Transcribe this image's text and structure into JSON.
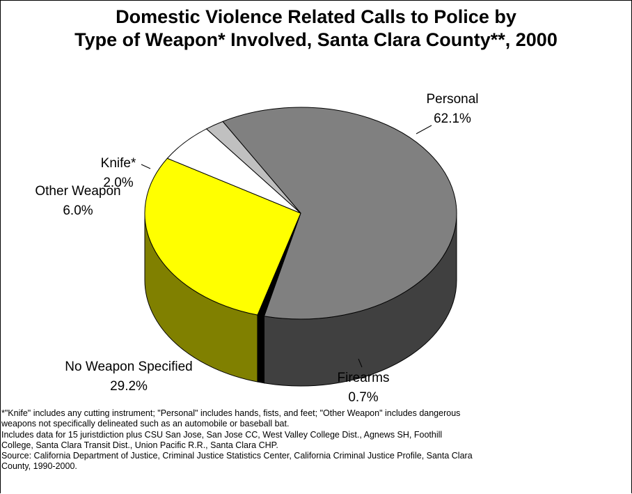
{
  "chart_data": {
    "type": "pie",
    "title_lines": [
      "Domestic Violence Related Calls to Police by",
      "Type of Weapon* Involved, Santa Clara County**, 2000"
    ],
    "slices": [
      {
        "name": "Personal",
        "value": 62.1,
        "label": "62.1%",
        "color": "#808080",
        "side_color": "#404040"
      },
      {
        "name": "Firearms",
        "value": 0.7,
        "label": "0.7%",
        "color": "#000000",
        "side_color": "#000000"
      },
      {
        "name": "No Weapon Specified",
        "value": 29.2,
        "label": "29.2%",
        "color": "#ffff00",
        "side_color": "#808000"
      },
      {
        "name": "Other Weapon",
        "value": 6.0,
        "label": "6.0%",
        "color": "#ffffff",
        "side_color": "#ffffff"
      },
      {
        "name": "Knife*",
        "value": 2.0,
        "label": "2.0%",
        "color": "#c0c0c0",
        "side_color": "#606060"
      }
    ]
  },
  "footnotes": [
    "*\"Knife\" includes any cutting instrument; \"Personal\" includes hands, fists, and feet; \"Other Weapon\" includes dangerous",
    "weapons not specifically delineated such as an automobile or baseball bat.",
    "Includes data for 15 juristdiction plus CSU San Jose, San Jose CC, West Valley College Dist., Agnews SH, Foothill",
    "College, Santa Clara Transit Dist., Union Pacific R.R., Santa Clara CHP.",
    "Source:  California Department of Justice, Criminal Justice Statistics Center, California Criminal Justice Profile, Santa Clara",
    "County, 1990-2000."
  ]
}
